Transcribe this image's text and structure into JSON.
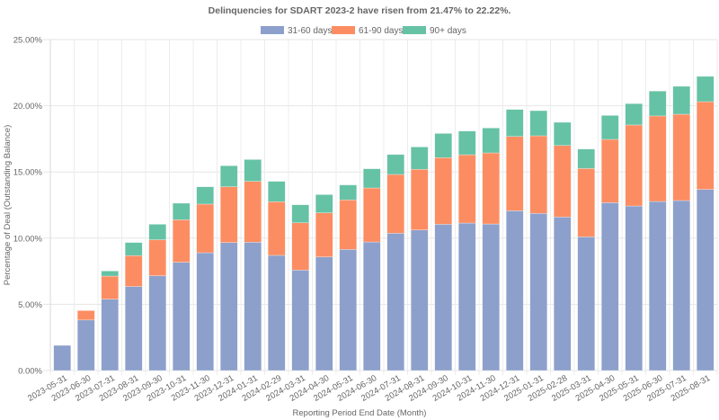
{
  "chart_data": {
    "type": "bar",
    "stacked": true,
    "title": "Delinquencies for SDART 2023-2 have risen from 21.47% to 22.22%.",
    "xlabel": "Reporting Period End Date (Month)",
    "ylabel": "Percentage of Deal (Outstanding Balance)",
    "ylim": [
      0,
      25
    ],
    "yticks": [
      "0.00%",
      "5.00%",
      "10.00%",
      "15.00%",
      "20.00%",
      "25.00%"
    ],
    "ytick_values": [
      0,
      5,
      10,
      15,
      20,
      25
    ],
    "grid": true,
    "legend_position": "top-center",
    "categories": [
      "2023-05-31",
      "2023-06-30",
      "2023-07-31",
      "2023-08-31",
      "2023-09-30",
      "2023-10-31",
      "2023-11-30",
      "2023-12-31",
      "2024-01-31",
      "2024-02-29",
      "2024-03-31",
      "2024-04-30",
      "2024-05-31",
      "2024-06-30",
      "2024-07-31",
      "2024-08-31",
      "2024-09-30",
      "2024-10-31",
      "2024-11-30",
      "2024-12-31",
      "2025-01-31",
      "2025-02-28",
      "2025-03-31",
      "2025-04-30",
      "2025-05-31",
      "2025-06-30",
      "2025-07-31",
      "2025-08-31"
    ],
    "series": [
      {
        "name": "31-60 days",
        "color": "#8da0cb",
        "values": [
          1.9,
          3.82,
          5.39,
          6.35,
          7.16,
          8.18,
          8.9,
          9.67,
          9.69,
          8.7,
          7.59,
          8.58,
          9.15,
          9.71,
          10.37,
          10.62,
          11.05,
          11.14,
          11.07,
          12.07,
          11.87,
          11.6,
          10.1,
          12.68,
          12.43,
          12.77,
          12.84,
          13.68
        ]
      },
      {
        "name": "61-90 days",
        "color": "#fc8d62",
        "values": [
          0.0,
          0.71,
          1.74,
          2.33,
          2.72,
          3.21,
          3.67,
          4.21,
          4.6,
          4.05,
          3.57,
          3.33,
          3.74,
          4.08,
          4.44,
          4.58,
          5.03,
          5.16,
          5.37,
          5.61,
          5.86,
          5.4,
          5.16,
          4.78,
          6.12,
          6.46,
          6.52,
          6.63
        ]
      },
      {
        "name": "90+ days",
        "color": "#66c2a5",
        "values": [
          0.0,
          0.0,
          0.39,
          0.99,
          1.17,
          1.25,
          1.31,
          1.59,
          1.65,
          1.54,
          1.36,
          1.38,
          1.13,
          1.45,
          1.51,
          1.69,
          1.83,
          1.79,
          1.88,
          2.04,
          1.9,
          1.75,
          1.47,
          1.81,
          1.61,
          1.88,
          2.11,
          1.91
        ]
      }
    ]
  }
}
